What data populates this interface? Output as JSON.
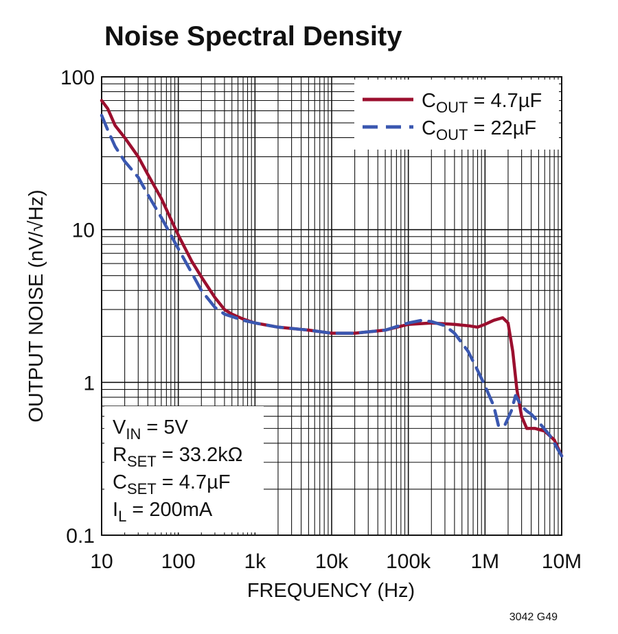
{
  "chart_data": {
    "type": "line",
    "title": "Noise Spectral Density",
    "xlabel": "FREQUENCY (Hz)",
    "ylabel": "OUTPUT NOISE (nV/√Hz)",
    "xscale": "log",
    "yscale": "log",
    "xlim": [
      10,
      10000000
    ],
    "ylim": [
      0.1,
      100
    ],
    "x_tick_labels": [
      "10",
      "100",
      "1k",
      "10k",
      "100k",
      "1M",
      "10M"
    ],
    "y_tick_labels": [
      "100",
      "10",
      "1",
      "0.1"
    ],
    "grid": true,
    "legend_position": "top-right",
    "series": [
      {
        "name": "C_OUT = 4.7µF",
        "legend": {
          "main": "C",
          "sub": "OUT",
          "rest": " = 4.7µF"
        },
        "color": "#9b0f2e",
        "dash": "solid",
        "x": [
          10,
          12,
          15,
          20,
          30,
          40,
          60,
          100,
          150,
          200,
          300,
          400,
          500,
          700,
          1000,
          2000,
          5000,
          10000,
          20000,
          50000,
          100000,
          200000,
          400000,
          600000,
          800000,
          1000000,
          1300000,
          1700000,
          2000000,
          2300000,
          2600000,
          3000000,
          3500000,
          4500000,
          6000000,
          8000000,
          10000000
        ],
        "y": [
          70,
          62,
          48,
          40,
          30,
          23,
          16,
          9.2,
          6.2,
          4.9,
          3.6,
          3.0,
          2.8,
          2.6,
          2.45,
          2.3,
          2.2,
          2.1,
          2.1,
          2.2,
          2.4,
          2.45,
          2.4,
          2.35,
          2.3,
          2.4,
          2.55,
          2.65,
          2.45,
          1.6,
          0.9,
          0.6,
          0.5,
          0.5,
          0.48,
          0.42,
          0.33
        ]
      },
      {
        "name": "C_OUT = 22µF",
        "legend": {
          "main": "C",
          "sub": "OUT",
          "rest": " = 22µF"
        },
        "color": "#3a57b0",
        "dash": "dashed",
        "x": [
          10,
          12,
          15,
          20,
          30,
          40,
          60,
          100,
          150,
          200,
          300,
          400,
          500,
          700,
          1000,
          2000,
          5000,
          10000,
          20000,
          50000,
          100000,
          150000,
          200000,
          300000,
          400000,
          600000,
          800000,
          1000000,
          1300000,
          1500000,
          1800000,
          2200000,
          2500000,
          3000000,
          3500000,
          4000000,
          5000000,
          7000000,
          10000000
        ],
        "y": [
          56,
          45,
          35,
          28,
          22,
          17,
          12,
          7.5,
          5.2,
          4.0,
          3.1,
          2.8,
          2.7,
          2.55,
          2.45,
          2.3,
          2.2,
          2.1,
          2.1,
          2.2,
          2.45,
          2.55,
          2.5,
          2.35,
          2.1,
          1.6,
          1.2,
          0.95,
          0.7,
          0.52,
          0.52,
          0.65,
          0.82,
          0.7,
          0.65,
          0.62,
          0.55,
          0.45,
          0.33
        ]
      }
    ]
  },
  "conditions": [
    {
      "main": "V",
      "sub": "IN",
      "rest": " = 5V"
    },
    {
      "main": "R",
      "sub": "SET",
      "rest": " = 33.2kΩ"
    },
    {
      "main": "C",
      "sub": "SET",
      "rest": " = 4.7µF"
    },
    {
      "main": "I",
      "sub": "L",
      "rest": " = 200mA"
    }
  ],
  "figure_code": "3042 G49"
}
